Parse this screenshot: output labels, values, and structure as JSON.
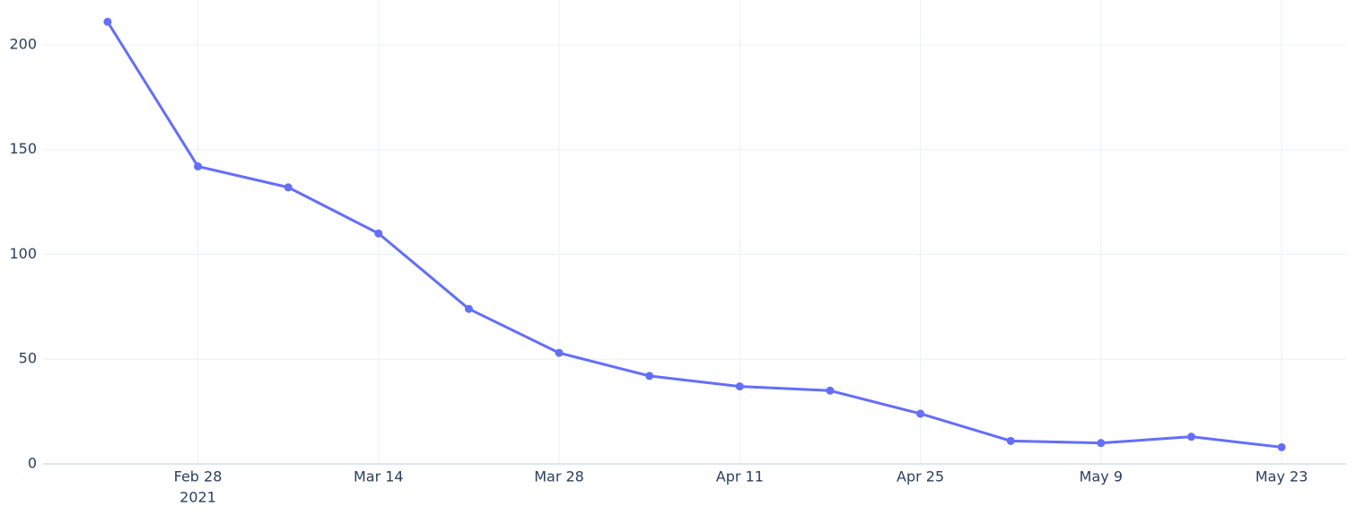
{
  "chart_data": {
    "type": "line",
    "x": [
      "2021-02-21",
      "2021-02-28",
      "2021-03-07",
      "2021-03-14",
      "2021-03-21",
      "2021-03-28",
      "2021-04-04",
      "2021-04-11",
      "2021-04-18",
      "2021-04-25",
      "2021-05-02",
      "2021-05-09",
      "2021-05-16",
      "2021-05-23"
    ],
    "series": [
      {
        "color": "#636efa",
        "values": [
          211,
          142,
          132,
          110,
          74,
          53,
          42,
          37,
          35,
          24,
          11,
          10,
          13,
          8
        ]
      }
    ],
    "xlim": [
      "2021-02-16",
      "2021-05-28"
    ],
    "xticks": [
      {
        "value": "2021-02-28",
        "label": "Feb 28",
        "sublabel": "2021"
      },
      {
        "value": "2021-03-14",
        "label": "Mar 14"
      },
      {
        "value": "2021-03-28",
        "label": "Mar 28"
      },
      {
        "value": "2021-04-11",
        "label": "Apr 11"
      },
      {
        "value": "2021-04-25",
        "label": "Apr 25"
      },
      {
        "value": "2021-05-09",
        "label": "May 9"
      },
      {
        "value": "2021-05-23",
        "label": "May 23"
      }
    ],
    "ylim": [
      0,
      221.4
    ],
    "yticks": [
      0,
      50,
      100,
      150,
      200
    ],
    "grid": true
  }
}
